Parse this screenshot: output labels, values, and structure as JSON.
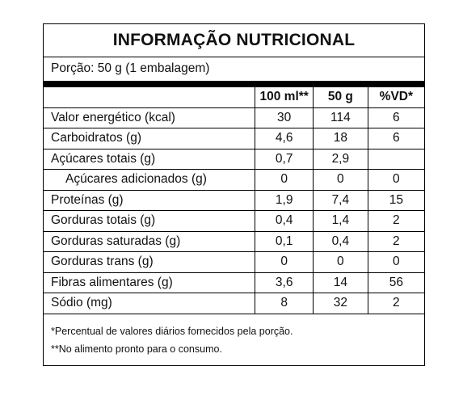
{
  "title": "INFORMAÇÃO NUTRICIONAL",
  "portion": "Porção: 50 g (1 embalagem)",
  "columns": [
    "100 ml**",
    "50 g",
    "%VD*"
  ],
  "rows": [
    {
      "name": "Valor energético (kcal)",
      "c1": "30",
      "c2": "114",
      "c3": "6"
    },
    {
      "name": "Carboidratos (g)",
      "c1": "4,6",
      "c2": "18",
      "c3": "6"
    },
    {
      "name": "Açúcares totais (g)",
      "c1": "0,7",
      "c2": "2,9",
      "c3": ""
    },
    {
      "name": "Açúcares adicionados (g)",
      "c1": "0",
      "c2": "0",
      "c3": "0"
    },
    {
      "name": "Proteínas (g)",
      "c1": "1,9",
      "c2": "7,4",
      "c3": "15"
    },
    {
      "name": "Gorduras totais (g)",
      "c1": "0,4",
      "c2": "1,4",
      "c3": "2"
    },
    {
      "name": "Gorduras saturadas (g)",
      "c1": "0,1",
      "c2": "0,4",
      "c3": "2"
    },
    {
      "name": "Gorduras trans (g)",
      "c1": "0",
      "c2": "0",
      "c3": "0"
    },
    {
      "name": "Fibras alimentares (g)",
      "c1": "3,6",
      "c2": "14",
      "c3": "56"
    },
    {
      "name": "Sódio (mg)",
      "c1": "8",
      "c2": "32",
      "c3": "2"
    }
  ],
  "footnotes": [
    "*Percentual de valores diários fornecidos pela porção.",
    "**No alimento pronto para o consumo."
  ]
}
